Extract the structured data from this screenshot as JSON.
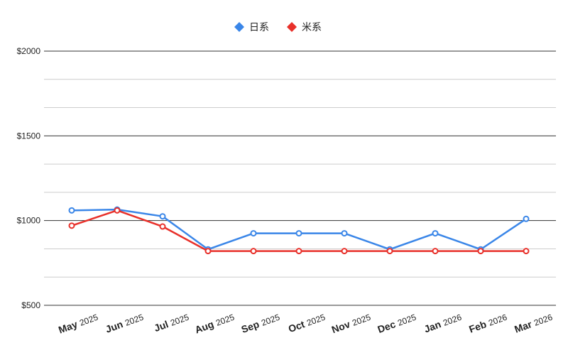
{
  "chart_data": {
    "type": "line",
    "title": "",
    "xlabel": "",
    "ylabel": "",
    "categories": [
      "May 2025",
      "Jun 2025",
      "Jul 2025",
      "Aug 2025",
      "Sep 2025",
      "Oct 2025",
      "Nov 2025",
      "Dec 2025",
      "Jan 2026",
      "Feb 2026",
      "Mar 2026"
    ],
    "x_tick_labels": [
      {
        "month": "May",
        "year": "2025"
      },
      {
        "month": "Jun",
        "year": "2025"
      },
      {
        "month": "Jul",
        "year": "2025"
      },
      {
        "month": "Aug",
        "year": "2025"
      },
      {
        "month": "Sep",
        "year": "2025"
      },
      {
        "month": "Oct",
        "year": "2025"
      },
      {
        "month": "Nov",
        "year": "2025"
      },
      {
        "month": "Dec",
        "year": "2025"
      },
      {
        "month": "Jan",
        "year": "2026"
      },
      {
        "month": "Feb",
        "year": "2026"
      },
      {
        "month": "Mar",
        "year": "2026"
      }
    ],
    "series": [
      {
        "name": "日系",
        "color": "#3a86e8",
        "values": [
          1060,
          1065,
          1025,
          830,
          925,
          925,
          925,
          830,
          925,
          830,
          1010
        ]
      },
      {
        "name": "米系",
        "color": "#e8302a",
        "values": [
          970,
          1060,
          965,
          820,
          820,
          820,
          820,
          820,
          820,
          820,
          820
        ]
      }
    ],
    "ylim": [
      500,
      2000
    ],
    "y_ticks": [
      {
        "value": 500,
        "label": "$500"
      },
      {
        "value": 1000,
        "label": "$1000"
      },
      {
        "value": 1500,
        "label": "$1500"
      },
      {
        "value": 2000,
        "label": "$2000"
      }
    ],
    "minor_gridlines": [
      666.67,
      833.33,
      1166.67,
      1333.33,
      1666.67,
      1833.33
    ],
    "grid": true,
    "legend": "top-center",
    "gridline_color": "#cccccc",
    "major_gridline_color": "#333333"
  }
}
